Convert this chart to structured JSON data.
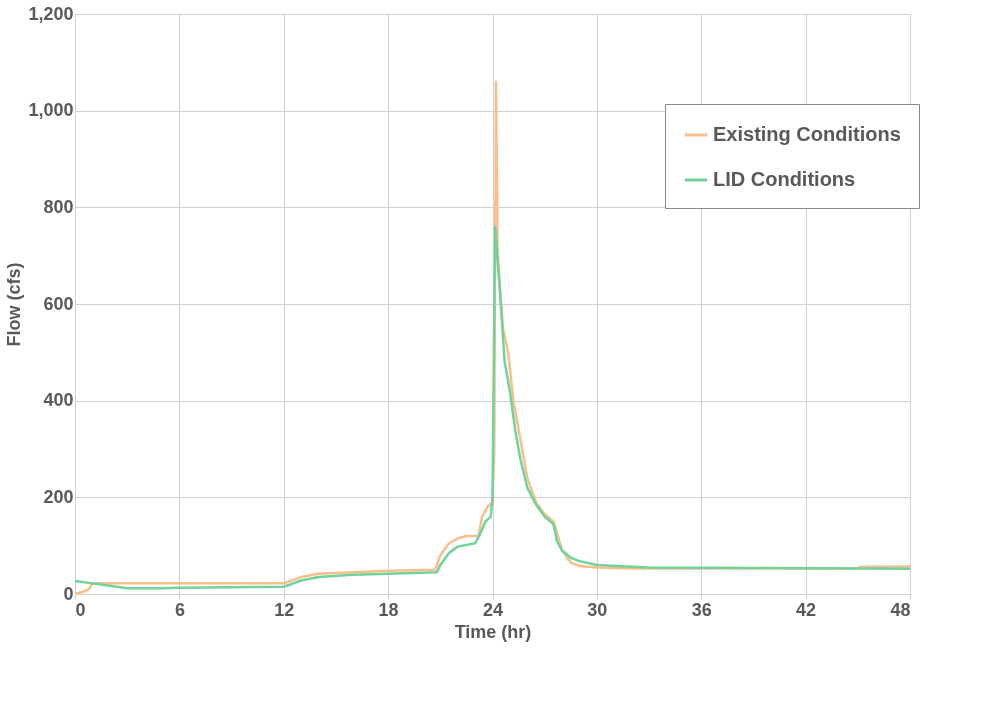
{
  "chart_data": {
    "type": "line",
    "xlabel": "Time (hr)",
    "ylabel": "Flow (cfs)",
    "xlim": [
      0,
      48
    ],
    "xticks": [
      0,
      6,
      12,
      18,
      24,
      30,
      36,
      42,
      48
    ],
    "ylim": [
      0,
      1200
    ],
    "yticks": [
      0,
      {
        "value": 200,
        "label": "200"
      },
      {
        "value": 400,
        "label": "400"
      },
      {
        "value": 600,
        "label": "600"
      },
      {
        "value": 800,
        "label": "800"
      },
      {
        "value": 1000,
        "label": "1,000"
      },
      {
        "value": 1200,
        "label": "1,200"
      }
    ],
    "grid": true,
    "legend": "top right",
    "marker": "none",
    "line_style": "solid",
    "series": [
      {
        "name": "Existing Conditions",
        "color": "#f9be8a",
        "x": [
          0,
          0.5,
          0.8,
          1,
          12,
          13,
          14,
          16,
          18,
          20.7,
          21,
          21.5,
          22,
          22.5,
          23.2,
          23.4,
          23.7,
          24,
          24.1,
          24.2,
          24.3,
          24.6,
          24.9,
          25.2,
          25.6,
          26,
          26.5,
          27,
          27.5,
          27.6,
          28,
          28.5,
          29,
          30,
          32,
          45,
          45.1,
          48
        ],
        "values": [
          0,
          5,
          10,
          22,
          22,
          35,
          42,
          45,
          48,
          50,
          80,
          105,
          115,
          120,
          120,
          160,
          180,
          190,
          300,
          1060,
          700,
          550,
          500,
          400,
          320,
          240,
          190,
          165,
          150,
          140,
          90,
          65,
          58,
          55,
          53,
          53,
          56,
          57
        ]
      },
      {
        "name": "LID Conditions",
        "color": "#6fd39a",
        "x": [
          0,
          1,
          2,
          3,
          5,
          6,
          9,
          12,
          13,
          14,
          16,
          18,
          20.8,
          21,
          21.5,
          22,
          23,
          23.3,
          23.6,
          23.9,
          24,
          24.15,
          24.4,
          24.7,
          25,
          25.3,
          25.6,
          26,
          26.5,
          27,
          27.5,
          27.7,
          28,
          28.5,
          29,
          30,
          33,
          48
        ],
        "values": [
          27,
          22,
          17,
          12,
          12,
          13,
          14,
          15,
          28,
          35,
          40,
          42,
          45,
          60,
          85,
          98,
          105,
          125,
          150,
          160,
          200,
          760,
          640,
          480,
          420,
          340,
          280,
          220,
          185,
          160,
          145,
          110,
          90,
          75,
          68,
          60,
          55,
          52
        ]
      }
    ]
  }
}
